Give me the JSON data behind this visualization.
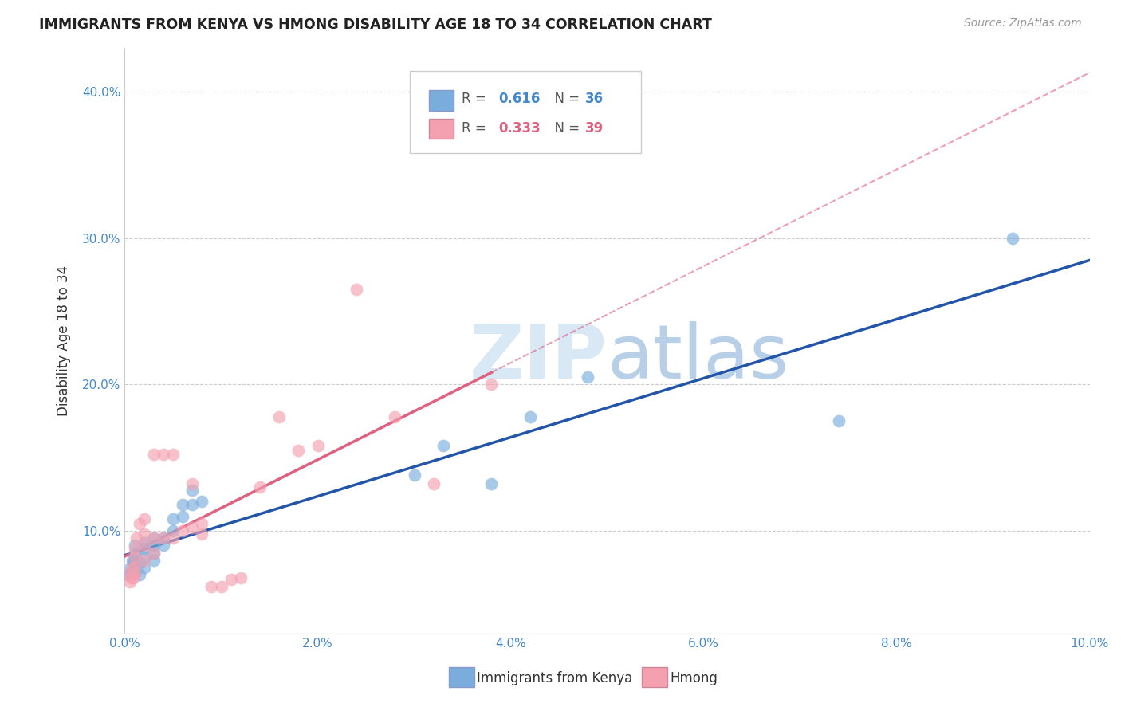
{
  "title": "IMMIGRANTS FROM KENYA VS HMONG DISABILITY AGE 18 TO 34 CORRELATION CHART",
  "source": "Source: ZipAtlas.com",
  "ylabel": "Disability Age 18 to 34",
  "r_kenya": 0.616,
  "n_kenya": 36,
  "r_hmong": 0.333,
  "n_hmong": 39,
  "xlim": [
    0.0,
    0.1
  ],
  "ylim": [
    0.03,
    0.43
  ],
  "blue_color": "#7aaddc",
  "pink_color": "#f4a0b0",
  "blue_line_color": "#2255aa",
  "pink_line_color": "#e06080",
  "watermark_color": "#d8e8f4",
  "kenya_x": [
    0.0004,
    0.0006,
    0.0007,
    0.0008,
    0.0009,
    0.001,
    0.001,
    0.001,
    0.001,
    0.001,
    0.0015,
    0.0015,
    0.002,
    0.002,
    0.002,
    0.002,
    0.003,
    0.003,
    0.003,
    0.003,
    0.004,
    0.004,
    0.005,
    0.005,
    0.006,
    0.006,
    0.007,
    0.007,
    0.008,
    0.03,
    0.033,
    0.038,
    0.042,
    0.048,
    0.074,
    0.092
  ],
  "kenya_y": [
    0.07,
    0.075,
    0.072,
    0.08,
    0.078,
    0.072,
    0.076,
    0.082,
    0.085,
    0.09,
    0.07,
    0.078,
    0.075,
    0.082,
    0.088,
    0.092,
    0.08,
    0.085,
    0.09,
    0.095,
    0.09,
    0.095,
    0.1,
    0.108,
    0.11,
    0.118,
    0.118,
    0.128,
    0.12,
    0.138,
    0.158,
    0.132,
    0.178,
    0.205,
    0.175,
    0.3
  ],
  "hmong_x": [
    0.0003,
    0.0005,
    0.0007,
    0.0008,
    0.0009,
    0.001,
    0.001,
    0.001,
    0.001,
    0.0012,
    0.0015,
    0.002,
    0.002,
    0.002,
    0.002,
    0.003,
    0.003,
    0.003,
    0.004,
    0.004,
    0.005,
    0.005,
    0.006,
    0.007,
    0.007,
    0.008,
    0.008,
    0.009,
    0.01,
    0.011,
    0.012,
    0.014,
    0.016,
    0.018,
    0.02,
    0.024,
    0.028,
    0.032,
    0.038
  ],
  "hmong_y": [
    0.07,
    0.065,
    0.068,
    0.075,
    0.068,
    0.07,
    0.075,
    0.082,
    0.088,
    0.095,
    0.105,
    0.08,
    0.09,
    0.098,
    0.108,
    0.085,
    0.095,
    0.152,
    0.095,
    0.152,
    0.095,
    0.152,
    0.1,
    0.102,
    0.132,
    0.098,
    0.105,
    0.062,
    0.062,
    0.067,
    0.068,
    0.13,
    0.178,
    0.155,
    0.158,
    0.265,
    0.178,
    0.132,
    0.2
  ]
}
